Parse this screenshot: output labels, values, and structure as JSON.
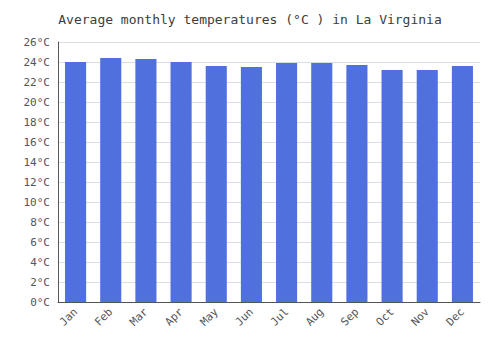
{
  "chart_data": {
    "type": "bar",
    "title": "Average monthly temperatures (°C ) in La Virginia",
    "categories": [
      "Jan",
      "Feb",
      "Mar",
      "Apr",
      "May",
      "Jun",
      "Jul",
      "Aug",
      "Sep",
      "Oct",
      "Nov",
      "Dec"
    ],
    "values": [
      24.0,
      24.4,
      24.3,
      24.0,
      23.6,
      23.5,
      23.9,
      23.9,
      23.7,
      23.2,
      23.2,
      23.6
    ],
    "ylim": [
      0,
      26
    ],
    "yticks": [
      {
        "value": 0,
        "label": "0°C"
      },
      {
        "value": 2,
        "label": "2°C"
      },
      {
        "value": 4,
        "label": "4°C"
      },
      {
        "value": 6,
        "label": "6°C"
      },
      {
        "value": 8,
        "label": "8°C"
      },
      {
        "value": 10,
        "label": "10°C"
      },
      {
        "value": 12,
        "label": "12°C"
      },
      {
        "value": 14,
        "label": "14°C"
      },
      {
        "value": 16,
        "label": "16°C"
      },
      {
        "value": 18,
        "label": "18°C"
      },
      {
        "value": 20,
        "label": "20°C"
      },
      {
        "value": 22,
        "label": "22°C"
      },
      {
        "value": 24,
        "label": "24°C"
      },
      {
        "value": 26,
        "label": "26°C"
      }
    ],
    "grid": true
  }
}
